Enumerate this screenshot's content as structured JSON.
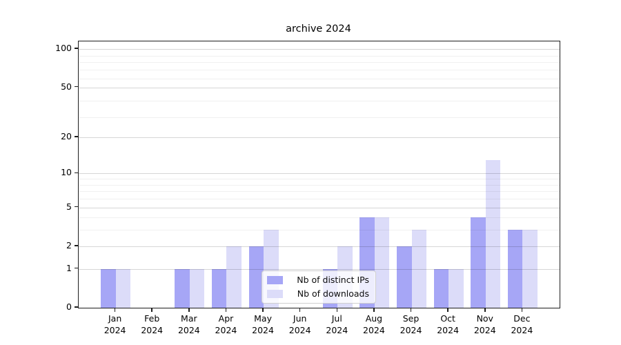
{
  "chart_data": {
    "type": "bar",
    "title": "archive 2024",
    "categories": [
      "Jan 2024",
      "Feb 2024",
      "Mar 2024",
      "Apr 2024",
      "May 2024",
      "Jun 2024",
      "Jul 2024",
      "Aug 2024",
      "Sep 2024",
      "Oct 2024",
      "Nov 2024",
      "Dec 2024"
    ],
    "x_tick_months": [
      "Jan",
      "Feb",
      "Mar",
      "Apr",
      "May",
      "Jun",
      "Jul",
      "Aug",
      "Sep",
      "Oct",
      "Nov",
      "Dec"
    ],
    "x_tick_year": "2024",
    "series": [
      {
        "name": "Nb of distinct IPs",
        "color": "#a6a6f6",
        "values": [
          1,
          0,
          1,
          1,
          2,
          0,
          1,
          4,
          2,
          1,
          4,
          3
        ]
      },
      {
        "name": "Nb of downloads",
        "color": "#dcdcf9",
        "values": [
          1,
          0,
          1,
          2,
          3,
          0,
          2,
          4,
          3,
          1,
          13,
          3
        ]
      }
    ],
    "xlabel": "",
    "ylabel": "",
    "yscale": "log1p",
    "ylim": [
      0,
      115
    ],
    "y_major_ticks": [
      0,
      1,
      2,
      5,
      10,
      20,
      50,
      100
    ],
    "y_major_tick_labels": [
      "0",
      "1",
      "2",
      "5",
      "10",
      "20",
      "50",
      "100"
    ],
    "y_minor_gridlines": [
      3,
      4,
      6,
      7,
      8,
      9,
      29,
      39,
      59,
      69,
      79,
      89
    ],
    "grid": "on",
    "legend_position": "lower center",
    "colors": {
      "axis": "#1c1c1c",
      "grid_major": "#d9d9d9",
      "grid_minor": "#efefef",
      "background": "#ffffff"
    }
  }
}
